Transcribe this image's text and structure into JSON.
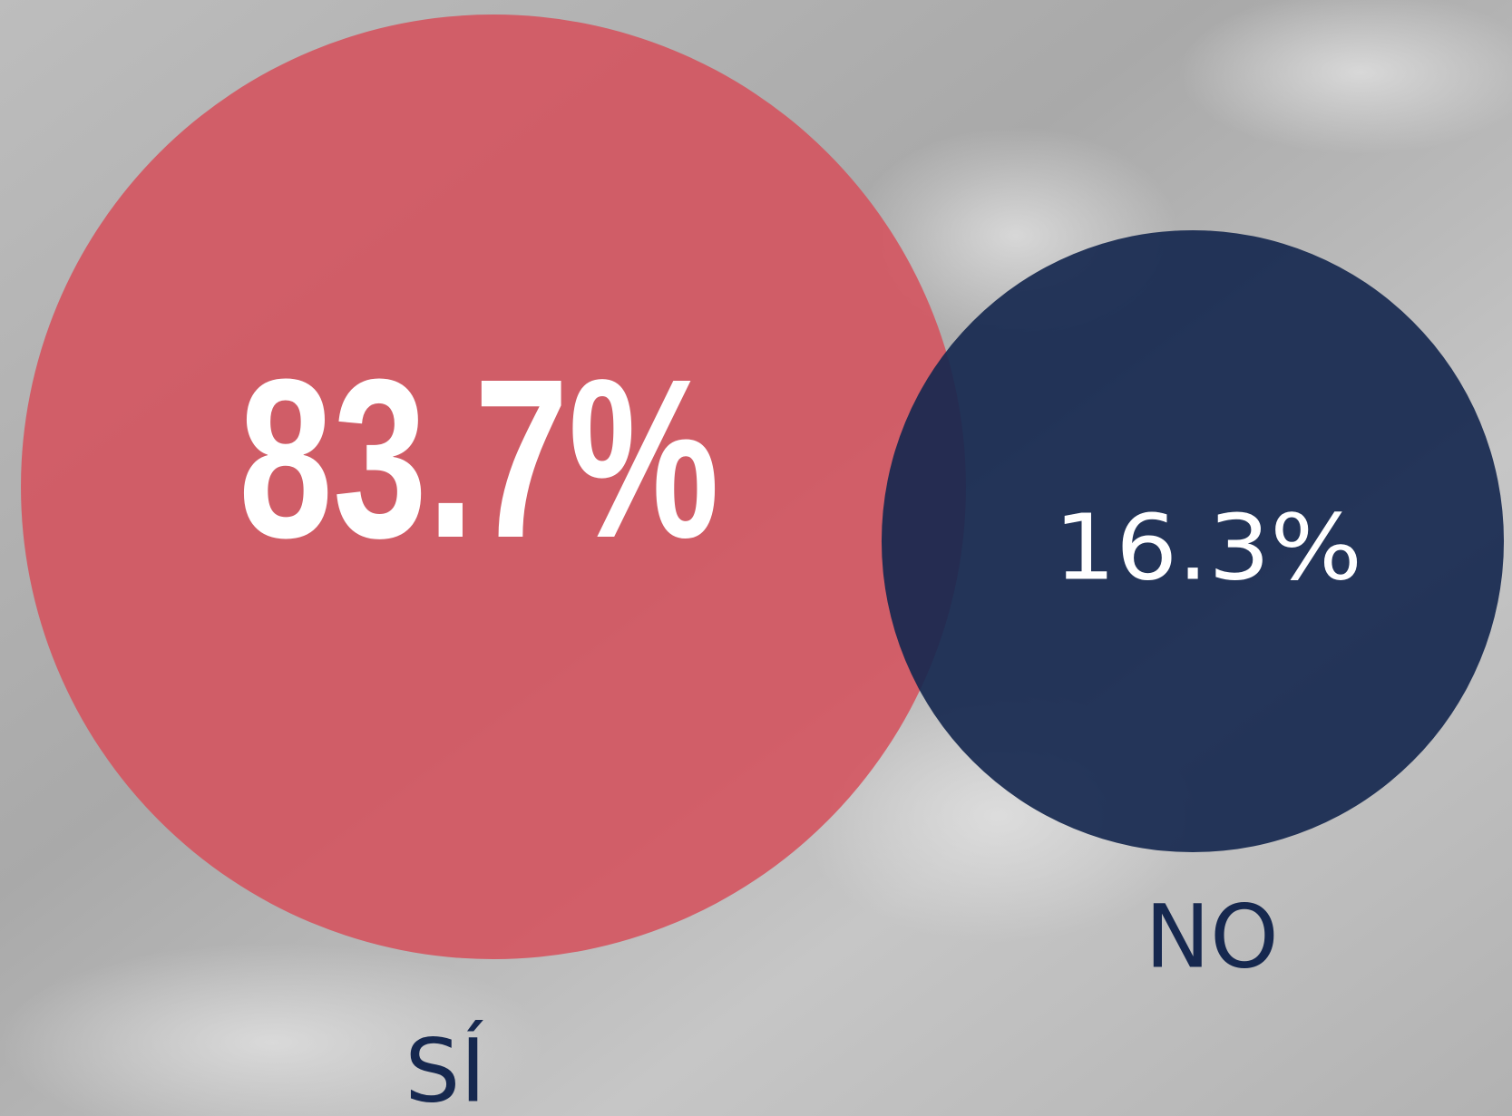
{
  "chart_data": {
    "type": "bubble",
    "categories": [
      "SÍ",
      "NO"
    ],
    "values": [
      83.7,
      16.3
    ],
    "value_labels": [
      "83.7%",
      "16.3%"
    ],
    "colors": [
      "#d4545f",
      "#16284f"
    ]
  }
}
